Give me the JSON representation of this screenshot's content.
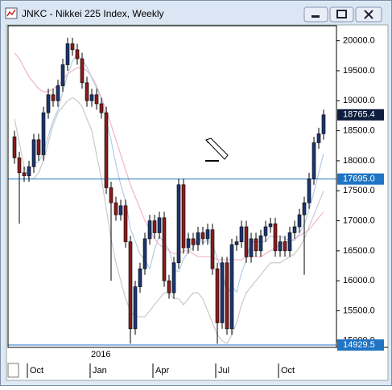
{
  "chart_data": {
    "type": "candlestick",
    "title": "JNKC - Nikkei 225 Index, Weekly",
    "categories": [
      null,
      null,
      null,
      "Oct",
      null,
      null,
      null,
      null,
      null,
      null,
      null,
      null,
      null,
      null,
      null,
      null,
      "Jan",
      null,
      null,
      null,
      null,
      null,
      null,
      null,
      null,
      null,
      null,
      null,
      null,
      "Apr",
      null,
      null,
      null,
      null,
      null,
      null,
      null,
      null,
      null,
      null,
      null,
      null,
      "Jul",
      null,
      null,
      null,
      null,
      null,
      null,
      null,
      null,
      null,
      null,
      null,
      null,
      "Oct",
      null,
      null,
      null,
      null,
      null,
      null,
      null,
      null,
      null
    ],
    "year_label": {
      "text": "2016",
      "index": 16
    },
    "open": [
      18400,
      18050,
      17800,
      17750,
      17900,
      18350,
      18100,
      18800,
      19100,
      19000,
      19250,
      19600,
      19950,
      19850,
      19700,
      19300,
      19000,
      19100,
      18950,
      18800,
      17550,
      17300,
      17100,
      17250,
      16650,
      15200,
      15900,
      16200,
      16700,
      17000,
      16800,
      17050,
      16000,
      15800,
      16300,
      17600,
      16550,
      16700,
      16600,
      16800,
      16700,
      16850,
      16200,
      15300,
      16300,
      15200,
      16600,
      16650,
      16900,
      16400,
      16700,
      16500,
      16750,
      16900,
      16950,
      16500,
      16650,
      16500,
      16800,
      16900,
      17100,
      17300,
      17700,
      18300,
      18450
    ],
    "high": [
      18500,
      18150,
      17900,
      18000,
      18450,
      18450,
      18900,
      19200,
      19200,
      19350,
      19700,
      20050,
      20050,
      19950,
      19800,
      19400,
      19200,
      19200,
      19050,
      18900,
      17650,
      17400,
      17350,
      17350,
      16750,
      16000,
      16300,
      16800,
      17100,
      17100,
      17150,
      17150,
      16100,
      16400,
      17700,
      17700,
      16800,
      16800,
      16900,
      16900,
      16950,
      16950,
      16300,
      16400,
      16400,
      16700,
      16750,
      17000,
      17000,
      16800,
      16800,
      16850,
      17000,
      17050,
      17050,
      16750,
      16750,
      16900,
      17000,
      17200,
      17400,
      17800,
      18400,
      18550,
      18850
    ],
    "low": [
      17950,
      16950,
      17650,
      17650,
      17800,
      18000,
      18000,
      18700,
      18900,
      18900,
      19150,
      19500,
      19750,
      19600,
      19200,
      18900,
      18900,
      18850,
      18700,
      17450,
      16000,
      17000,
      17000,
      16550,
      14950,
      15100,
      15800,
      16100,
      16600,
      16700,
      16700,
      15900,
      15700,
      15700,
      16200,
      16450,
      16450,
      16500,
      16500,
      16600,
      16600,
      16100,
      14950,
      15200,
      15100,
      15100,
      16500,
      16550,
      16300,
      16300,
      16400,
      16400,
      16650,
      16800,
      16400,
      16400,
      16400,
      16400,
      16700,
      16800,
      16100,
      17200,
      17600,
      18200,
      18350
    ],
    "close": [
      18050,
      17800,
      17750,
      17900,
      18350,
      18100,
      18800,
      19100,
      19000,
      19250,
      19600,
      19950,
      19850,
      19700,
      19300,
      19000,
      19100,
      18950,
      18800,
      17550,
      17300,
      17100,
      17250,
      16650,
      15200,
      15900,
      16200,
      16700,
      17000,
      16800,
      17050,
      16000,
      15800,
      16300,
      17600,
      16550,
      16700,
      16600,
      16800,
      16700,
      16850,
      16200,
      15300,
      16300,
      15200,
      16600,
      16650,
      16900,
      16400,
      16700,
      16500,
      16750,
      16900,
      16950,
      16500,
      16650,
      16500,
      16800,
      16900,
      17100,
      17300,
      17700,
      18300,
      18450,
      18765.4
    ],
    "up_color": "#1c3572",
    "down_color": "#8a1c1c",
    "overlays": [
      {
        "color": "#f2b5c6",
        "values": [
          19800,
          19700,
          19550,
          19400,
          19300,
          19200,
          19150,
          19150,
          19200,
          19250,
          19350,
          19450,
          19500,
          19550,
          19550,
          19500,
          19400,
          19250,
          19050,
          18850,
          18600,
          18350,
          18100,
          17850,
          17600,
          17400,
          17200,
          17000,
          16850,
          16700,
          16600,
          16550,
          16500,
          16450,
          16450,
          16500,
          16500,
          16450,
          16400,
          16400,
          16400,
          16400,
          16350,
          16350,
          16350,
          16350,
          16350,
          16350,
          16400,
          16400,
          16400,
          16400,
          16450,
          16500,
          16550,
          16600,
          16650,
          16650,
          16700,
          16750,
          16800,
          16850,
          16950,
          17050,
          17150
        ]
      },
      {
        "color": "#c9c9c9",
        "values": [
          18700,
          18300,
          17900,
          17700,
          17700,
          17800,
          18000,
          18300,
          18600,
          18800,
          18900,
          19000,
          19050,
          19000,
          18900,
          18700,
          18500,
          18100,
          17700,
          17200,
          16700,
          16300,
          16000,
          15700,
          15500,
          15400,
          15400,
          15400,
          15500,
          15600,
          15700,
          15800,
          15800,
          15700,
          15700,
          15600,
          15700,
          15800,
          15800,
          15700,
          15500,
          15300,
          15100,
          15000,
          14950,
          15100,
          15300,
          15600,
          15800,
          15900,
          16000,
          16100,
          16200,
          16300,
          16300,
          16300,
          16350,
          16400,
          16450,
          16550,
          16700,
          16900,
          17100,
          17300,
          17500
        ]
      },
      {
        "color": "#b6cbe6",
        "values": [
          null,
          null,
          null,
          null,
          17970,
          17980,
          18140,
          18410,
          18670,
          18850,
          19150,
          19440,
          19660,
          19780,
          19680,
          19560,
          19380,
          19210,
          19030,
          18680,
          18340,
          17940,
          17600,
          17330,
          16870,
          16660,
          16440,
          16350,
          16200,
          16520,
          16750,
          16620,
          16520,
          16190,
          16150,
          16360,
          16490,
          16550,
          16730,
          16630,
          16680,
          16610,
          16370,
          16170,
          15770,
          15910,
          15810,
          16130,
          16350,
          16650,
          16650,
          16650,
          16650,
          16750,
          16720,
          16750,
          16700,
          16680,
          16670,
          16790,
          16940,
          17180,
          17480,
          17800,
          18120
        ]
      }
    ],
    "ylim": [
      14890,
      20250
    ],
    "yticks": [
      {
        "value": 15000,
        "label": "15000.0"
      },
      {
        "value": 15500,
        "label": "15500.0"
      },
      {
        "value": 16000,
        "label": "16000.0"
      },
      {
        "value": 16500,
        "label": "16500.0"
      },
      {
        "value": 17000,
        "label": "17000.0"
      },
      {
        "value": 17500,
        "label": "17500.0"
      },
      {
        "value": 18000,
        "label": "18000.0"
      },
      {
        "value": 18500,
        "label": "18500.0"
      },
      {
        "value": 19000,
        "label": "19000.0"
      },
      {
        "value": 19500,
        "label": "19500.0"
      },
      {
        "value": 20000,
        "label": "20000.0"
      }
    ],
    "hlines": [
      {
        "value": 17695,
        "label": "17695.0"
      },
      14929.5
    ],
    "hline_color": "#1f74c4"
  }
}
